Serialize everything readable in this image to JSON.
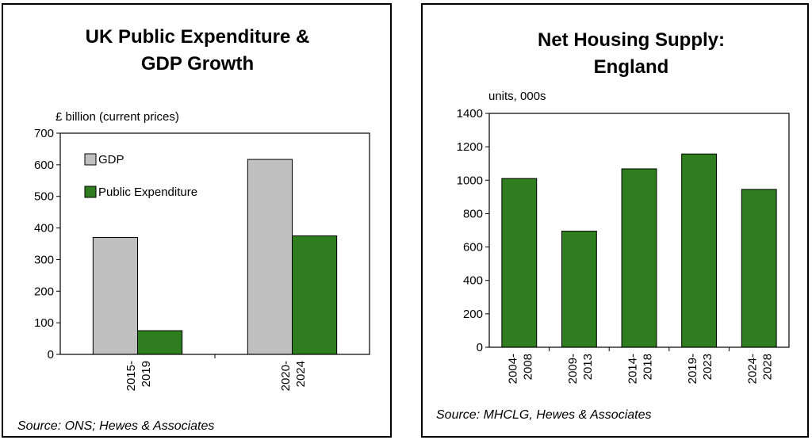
{
  "chart_data": [
    {
      "type": "bar",
      "title_lines": [
        "UK Public Expenditure &",
        "GDP Growth"
      ],
      "unit_label": "£ billion (current prices)",
      "categories": [
        [
          "2015-",
          "2019"
        ],
        [
          "2020-",
          "2024"
        ]
      ],
      "series": [
        {
          "name": "GDP",
          "values": [
            370,
            617
          ],
          "color": "#c0c0c0"
        },
        {
          "name": "Public Expenditure",
          "values": [
            75,
            375
          ],
          "color": "#2e7d1e"
        }
      ],
      "ylim": [
        0,
        700
      ],
      "yticks": [
        0,
        100,
        200,
        300,
        400,
        500,
        600,
        700
      ],
      "legend_position": "top-left",
      "grid": false,
      "source": "Source: ONS; Hewes & Associates"
    },
    {
      "type": "bar",
      "title_lines": [
        "Net Housing Supply:",
        "England"
      ],
      "unit_label": "units, 000s",
      "categories": [
        [
          "2004-",
          "2008"
        ],
        [
          "2009-",
          "2013"
        ],
        [
          "2014-",
          "2018"
        ],
        [
          "2019-",
          "2023"
        ],
        [
          "2024-",
          "2028"
        ]
      ],
      "series": [
        {
          "values": [
            1010,
            695,
            1068,
            1157,
            945
          ],
          "color": "#2e7d1e"
        }
      ],
      "ylim": [
        0,
        1400
      ],
      "yticks": [
        0,
        200,
        400,
        600,
        800,
        1000,
        1200,
        1400
      ],
      "grid": false,
      "source": "Source: MHCLG, Hewes & Associates"
    }
  ]
}
